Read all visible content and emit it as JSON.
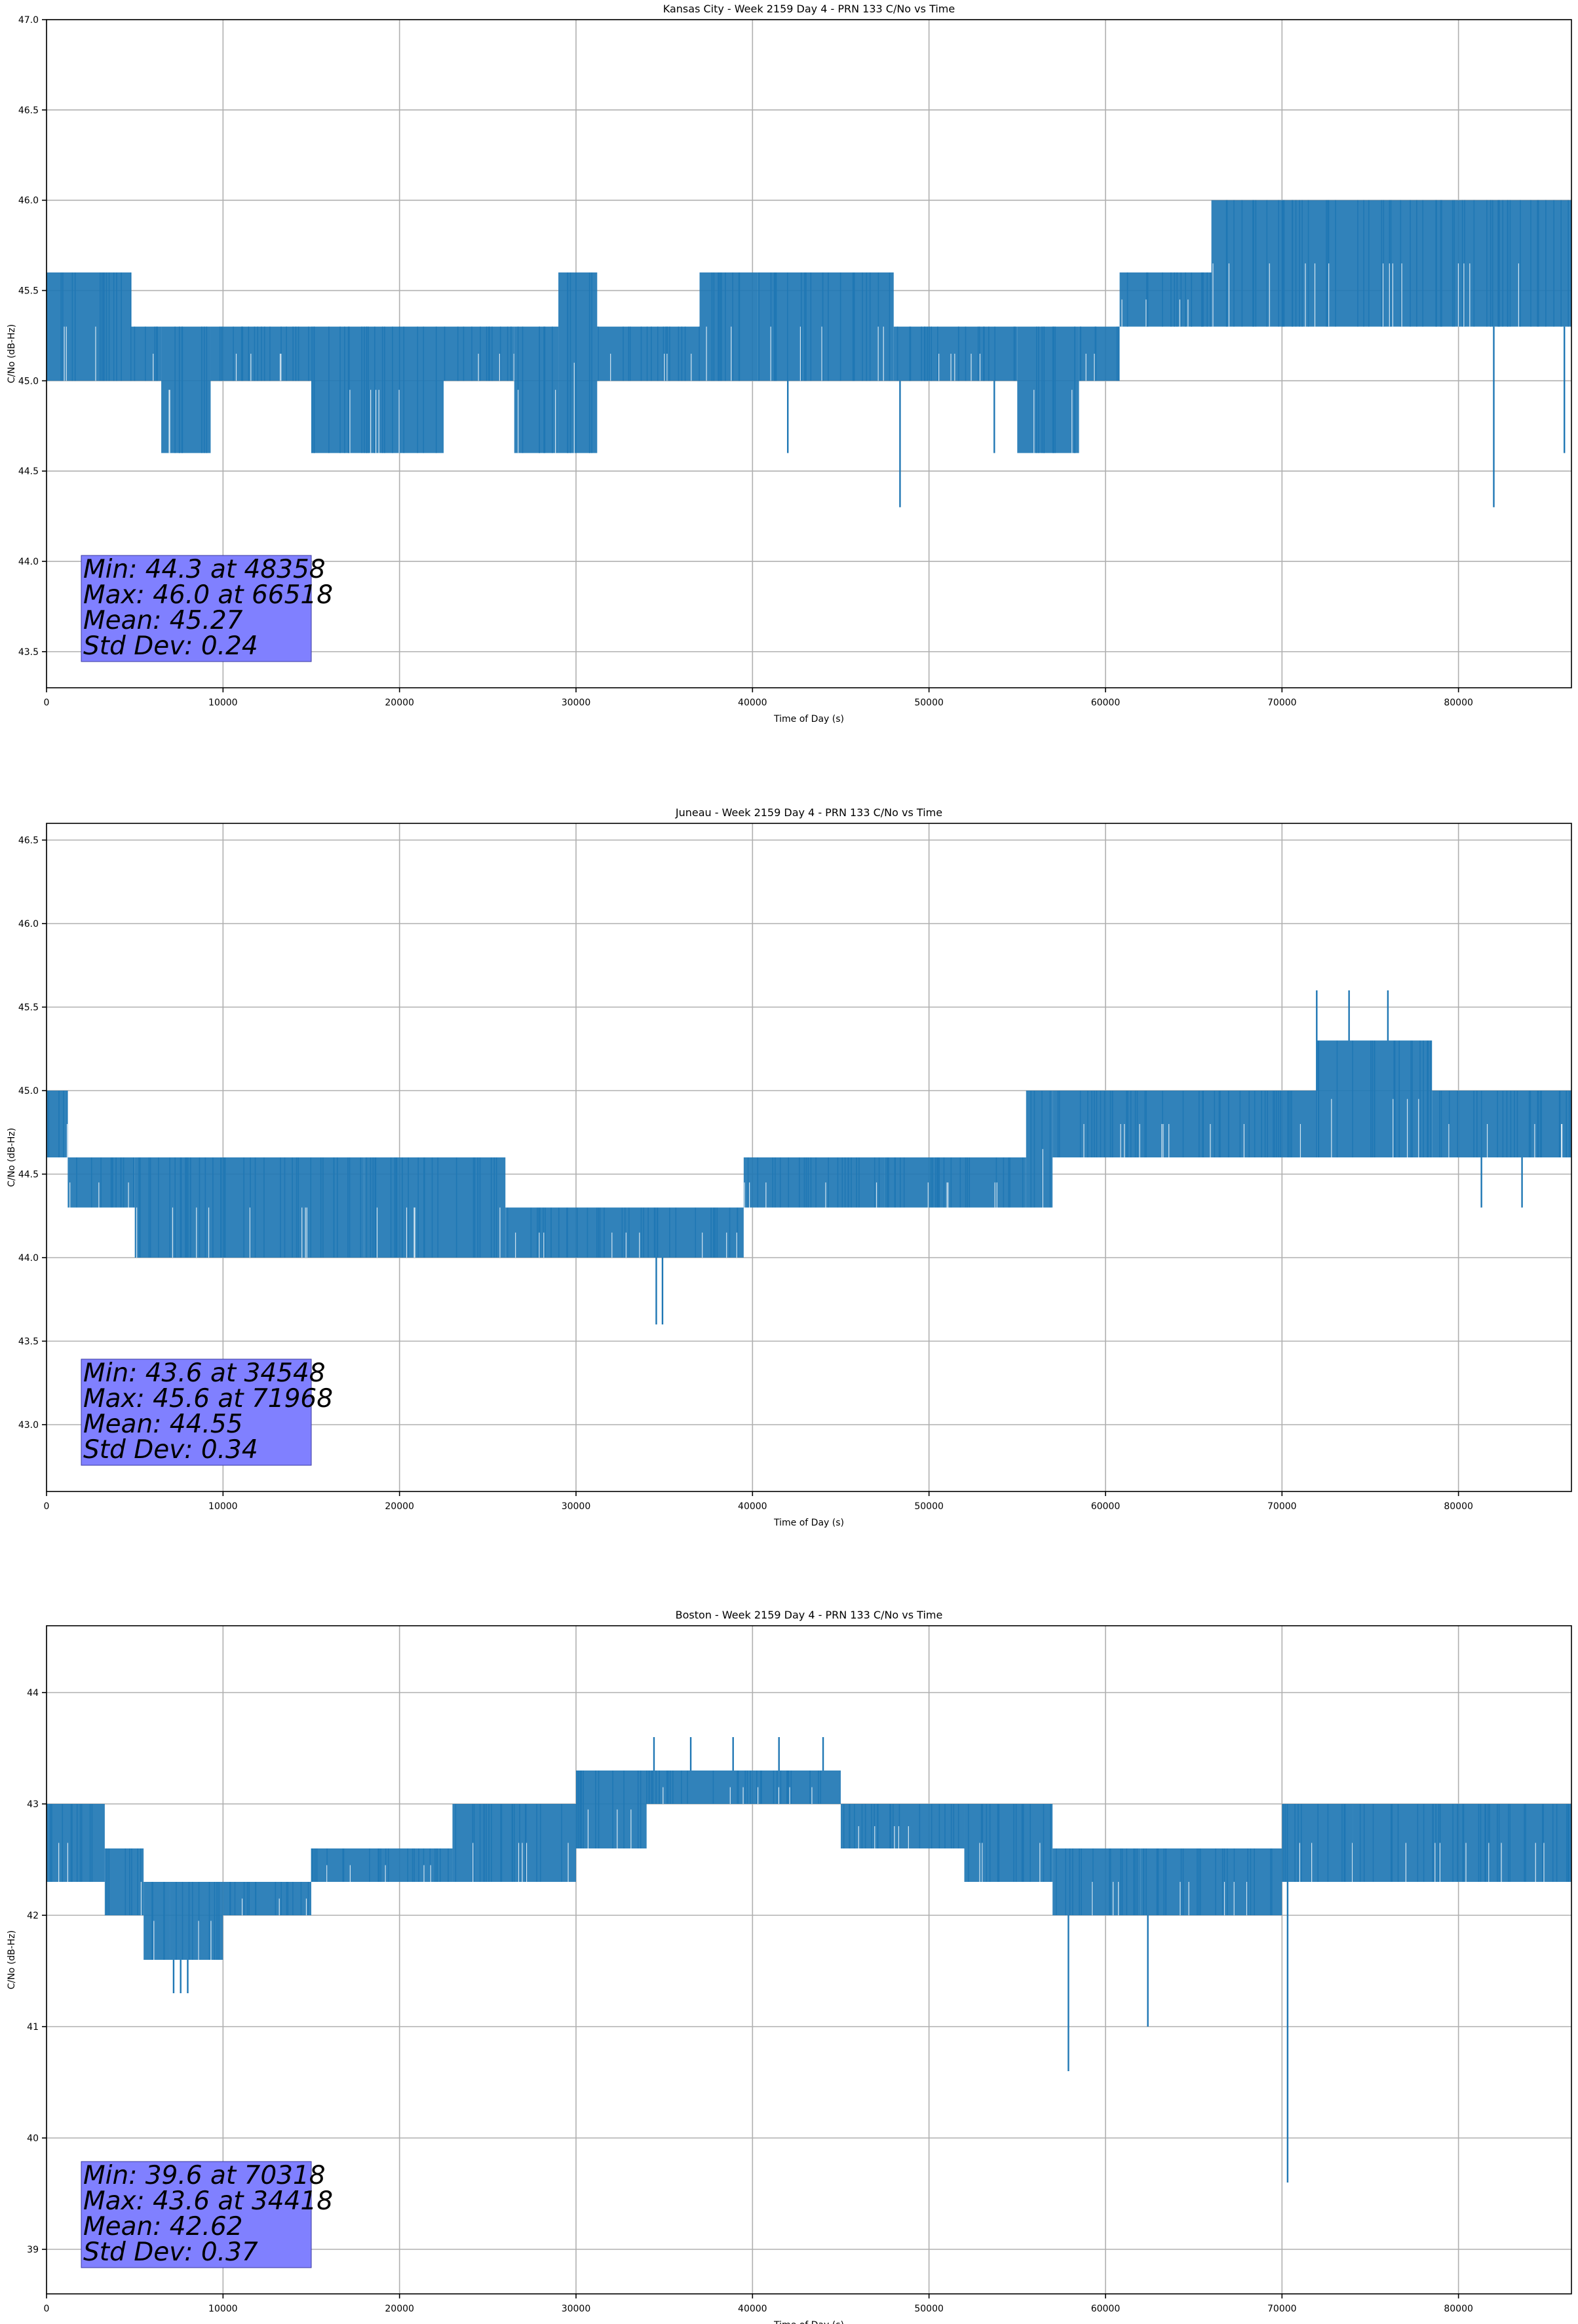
{
  "chart_data": [
    {
      "type": "line",
      "title": "Kansas City - Week 2159 Day 4 - PRN 133 C/No vs Time",
      "xlabel": "Time of Day (s)",
      "ylabel": "C/No (dB-Hz)",
      "xlim": [
        0,
        86400
      ],
      "ylim": [
        43.3,
        47.0
      ],
      "xticks": [
        0,
        10000,
        20000,
        30000,
        40000,
        50000,
        60000,
        70000,
        80000
      ],
      "yticks": [
        43.5,
        44.0,
        44.5,
        45.0,
        45.5,
        46.0,
        46.5,
        47.0
      ],
      "ytick_labels": [
        "43.5",
        "44.0",
        "44.5",
        "45.0",
        "45.5",
        "46.0",
        "46.5",
        "47.0"
      ],
      "grid": true,
      "series_color": "#1f77b4",
      "stats_box_color": "#8080ff",
      "stats": [
        "Min: 44.3 at 48358",
        "Max: 46.0 at 66518",
        "Mean: 45.27",
        "Std Dev: 0.24"
      ],
      "segments": [
        {
          "x": [
            0,
            4800
          ],
          "y": [
            45.0,
            45.6
          ]
        },
        {
          "x": [
            4800,
            6500
          ],
          "y": [
            45.0,
            45.3
          ]
        },
        {
          "x": [
            6500,
            9300
          ],
          "y": [
            44.6,
            45.3
          ]
        },
        {
          "x": [
            9300,
            15000
          ],
          "y": [
            45.0,
            45.3
          ]
        },
        {
          "x": [
            15000,
            22500
          ],
          "y": [
            44.6,
            45.3
          ]
        },
        {
          "x": [
            22500,
            26500
          ],
          "y": [
            45.0,
            45.3
          ]
        },
        {
          "x": [
            26500,
            29000
          ],
          "y": [
            44.6,
            45.3
          ]
        },
        {
          "x": [
            29000,
            31200
          ],
          "y": [
            44.6,
            45.6
          ]
        },
        {
          "x": [
            31200,
            37000
          ],
          "y": [
            45.0,
            45.3
          ]
        },
        {
          "x": [
            37000,
            40300
          ],
          "y": [
            45.0,
            45.6
          ]
        },
        {
          "x": [
            40300,
            48000
          ],
          "y": [
            45.0,
            45.6
          ]
        },
        {
          "x": [
            48000,
            55000
          ],
          "y": [
            45.0,
            45.3
          ]
        },
        {
          "x": [
            55000,
            58500
          ],
          "y": [
            44.6,
            45.3
          ]
        },
        {
          "x": [
            58500,
            60800
          ],
          "y": [
            45.0,
            45.3
          ]
        },
        {
          "x": [
            60800,
            66000
          ],
          "y": [
            45.3,
            45.6
          ]
        },
        {
          "x": [
            66000,
            86400
          ],
          "y": [
            45.3,
            46.0
          ]
        }
      ],
      "spikes": [
        {
          "x": 48358,
          "y": 44.3
        },
        {
          "x": 42000,
          "y": 44.6
        },
        {
          "x": 53700,
          "y": 44.6
        },
        {
          "x": 82000,
          "y": 44.3
        },
        {
          "x": 86000,
          "y": 44.6
        }
      ]
    },
    {
      "type": "line",
      "title": "Juneau - Week 2159 Day 4 - PRN 133 C/No vs Time",
      "xlabel": "Time of Day (s)",
      "ylabel": "C/No (dB-Hz)",
      "xlim": [
        0,
        86400
      ],
      "ylim": [
        42.6,
        46.6
      ],
      "xticks": [
        0,
        10000,
        20000,
        30000,
        40000,
        50000,
        60000,
        70000,
        80000
      ],
      "yticks": [
        43.0,
        43.5,
        44.0,
        44.5,
        45.0,
        45.5,
        46.0,
        46.5
      ],
      "ytick_labels": [
        "43.0",
        "43.5",
        "44.0",
        "44.5",
        "45.0",
        "45.5",
        "46.0",
        "46.5"
      ],
      "grid": true,
      "series_color": "#1f77b4",
      "stats_box_color": "#8080ff",
      "stats": [
        "Min: 43.6 at 34548",
        "Max: 45.6 at 71968",
        "Mean: 44.55",
        "Std Dev: 0.34"
      ],
      "segments": [
        {
          "x": [
            0,
            1200
          ],
          "y": [
            44.6,
            45.0
          ]
        },
        {
          "x": [
            1200,
            5000
          ],
          "y": [
            44.3,
            44.6
          ]
        },
        {
          "x": [
            5000,
            7000
          ],
          "y": [
            44.0,
            44.6
          ]
        },
        {
          "x": [
            7000,
            18000
          ],
          "y": [
            44.0,
            44.6
          ]
        },
        {
          "x": [
            18000,
            26000
          ],
          "y": [
            44.0,
            44.6
          ]
        },
        {
          "x": [
            26000,
            30000
          ],
          "y": [
            44.0,
            44.3
          ]
        },
        {
          "x": [
            30000,
            39500
          ],
          "y": [
            44.0,
            44.3
          ]
        },
        {
          "x": [
            39500,
            47500
          ],
          "y": [
            44.3,
            44.6
          ]
        },
        {
          "x": [
            47500,
            55500
          ],
          "y": [
            44.3,
            44.6
          ]
        },
        {
          "x": [
            55500,
            57000
          ],
          "y": [
            44.3,
            45.0
          ]
        },
        {
          "x": [
            57000,
            72000
          ],
          "y": [
            44.6,
            45.0
          ]
        },
        {
          "x": [
            72000,
            78500
          ],
          "y": [
            44.6,
            45.3
          ]
        },
        {
          "x": [
            78500,
            80000
          ],
          "y": [
            44.6,
            45.0
          ]
        },
        {
          "x": [
            80000,
            86400
          ],
          "y": [
            44.6,
            45.0
          ]
        }
      ],
      "spikes": [
        {
          "x": 34548,
          "y": 43.6
        },
        {
          "x": 34900,
          "y": 43.6
        },
        {
          "x": 71968,
          "y": 45.6
        },
        {
          "x": 73800,
          "y": 45.6
        },
        {
          "x": 76000,
          "y": 45.6
        },
        {
          "x": 81300,
          "y": 44.3
        },
        {
          "x": 83600,
          "y": 44.3
        }
      ]
    },
    {
      "type": "line",
      "title": "Boston - Week 2159 Day 4 - PRN 133 C/No vs Time",
      "xlabel": "Time of Day (s)",
      "ylabel": "C/No (dB-Hz)",
      "xlim": [
        0,
        86400
      ],
      "ylim": [
        38.6,
        44.6
      ],
      "xticks": [
        0,
        10000,
        20000,
        30000,
        40000,
        50000,
        60000,
        70000,
        80000
      ],
      "yticks": [
        39,
        40,
        41,
        42,
        43,
        44
      ],
      "ytick_labels": [
        "39",
        "40",
        "41",
        "42",
        "43",
        "44"
      ],
      "grid": true,
      "series_color": "#1f77b4",
      "stats_box_color": "#8080ff",
      "stats": [
        "Min: 39.6 at 70318",
        "Max: 43.6 at 34418",
        "Mean: 42.62",
        "Std Dev: 0.37"
      ],
      "segments": [
        {
          "x": [
            0,
            3300
          ],
          "y": [
            42.3,
            43.0
          ]
        },
        {
          "x": [
            3300,
            5500
          ],
          "y": [
            42.0,
            42.6
          ]
        },
        {
          "x": [
            5500,
            7000
          ],
          "y": [
            41.6,
            42.3
          ]
        },
        {
          "x": [
            7000,
            10000
          ],
          "y": [
            41.6,
            42.3
          ]
        },
        {
          "x": [
            10000,
            15000
          ],
          "y": [
            42.0,
            42.3
          ]
        },
        {
          "x": [
            15000,
            23000
          ],
          "y": [
            42.3,
            42.6
          ]
        },
        {
          "x": [
            23000,
            30000
          ],
          "y": [
            42.3,
            43.0
          ]
        },
        {
          "x": [
            30000,
            34000
          ],
          "y": [
            42.6,
            43.3
          ]
        },
        {
          "x": [
            34000,
            45000
          ],
          "y": [
            43.0,
            43.3
          ]
        },
        {
          "x": [
            45000,
            52000
          ],
          "y": [
            42.6,
            43.0
          ]
        },
        {
          "x": [
            52000,
            57000
          ],
          "y": [
            42.3,
            43.0
          ]
        },
        {
          "x": [
            57000,
            62000
          ],
          "y": [
            42.0,
            42.6
          ]
        },
        {
          "x": [
            62000,
            70000
          ],
          "y": [
            42.0,
            42.6
          ]
        },
        {
          "x": [
            70000,
            74000
          ],
          "y": [
            42.3,
            43.0
          ]
        },
        {
          "x": [
            74000,
            82000
          ],
          "y": [
            42.3,
            43.0
          ]
        },
        {
          "x": [
            82000,
            86400
          ],
          "y": [
            42.3,
            43.0
          ]
        }
      ],
      "spikes": [
        {
          "x": 70318,
          "y": 39.6
        },
        {
          "x": 57900,
          "y": 40.6
        },
        {
          "x": 62400,
          "y": 41.0
        },
        {
          "x": 7200,
          "y": 41.3
        },
        {
          "x": 7600,
          "y": 41.3
        },
        {
          "x": 8000,
          "y": 41.3
        },
        {
          "x": 34418,
          "y": 43.6
        },
        {
          "x": 36500,
          "y": 43.6
        },
        {
          "x": 38900,
          "y": 43.6
        },
        {
          "x": 41500,
          "y": 43.6
        },
        {
          "x": 44000,
          "y": 43.6
        }
      ]
    }
  ]
}
